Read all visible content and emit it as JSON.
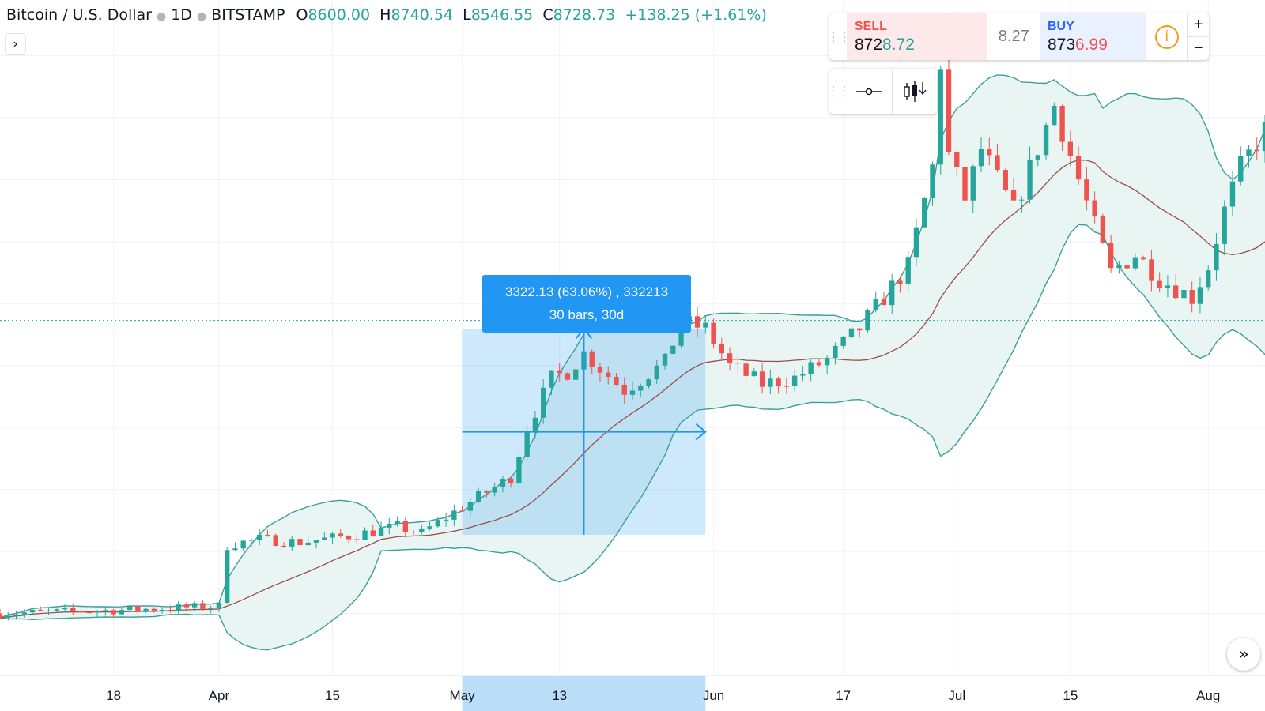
{
  "legend": {
    "symbol": "Bitcoin / U.S. Dollar",
    "interval": "1D",
    "exchange": "BITSTAMP",
    "open_label": "O",
    "open": "8600.00",
    "high_label": "H",
    "high": "8740.54",
    "low_label": "L",
    "low": "8546.55",
    "close_label": "C",
    "close": "8728.73",
    "change": "+138.25 (+1.61%)"
  },
  "trade": {
    "sell_label": "SELL",
    "sell_price_head": "872",
    "sell_price_tail": "8.72",
    "spread": "8.27",
    "buy_label": "BUY",
    "buy_price_head": "873",
    "buy_price_tail": "6.99",
    "plus": "+",
    "minus": "−",
    "info_icon": "i"
  },
  "measure": {
    "line1": "3322.13 (63.06%) , 332213",
    "line2": "30 bars, 30d"
  },
  "colors": {
    "up": "#26a69a",
    "down": "#ef5350",
    "band": "#3a9f9a",
    "band_fill": "#e9f5f3",
    "basis": "#9c4e4a",
    "measure": "#2196f3"
  },
  "chart_data": {
    "type": "candlestick",
    "x_tick_labels": [
      {
        "label": "18",
        "day": -13
      },
      {
        "label": "Apr",
        "day": 0
      },
      {
        "label": "15",
        "day": 14
      },
      {
        "label": "May",
        "day": 30
      },
      {
        "label": "13",
        "day": 42
      },
      {
        "label": "Jun",
        "day": 61
      },
      {
        "label": "17",
        "day": 77
      },
      {
        "label": "Jul",
        "day": 91
      },
      {
        "label": "15",
        "day": 105
      },
      {
        "label": "Aug",
        "day": 122
      }
    ],
    "x_range_days": [
      -27,
      129
    ],
    "y_range": [
      3000,
      13900
    ],
    "last_price": 8728.73,
    "indicator": "Bollinger Bands (20, 2)",
    "anchors": [
      [
        -27,
        4000
      ],
      [
        -13,
        4050
      ],
      [
        0,
        4120
      ],
      [
        1,
        5100
      ],
      [
        5,
        5200
      ],
      [
        10,
        5150
      ],
      [
        16,
        5250
      ],
      [
        22,
        5400
      ],
      [
        25,
        5300
      ],
      [
        31,
        5800
      ],
      [
        36,
        6200
      ],
      [
        38,
        7000
      ],
      [
        41,
        7800
      ],
      [
        43,
        7900
      ],
      [
        45,
        8200
      ],
      [
        50,
        7600
      ],
      [
        55,
        8050
      ],
      [
        57,
        8700
      ],
      [
        60,
        8600
      ],
      [
        63,
        8000
      ],
      [
        67,
        7700
      ],
      [
        71,
        7800
      ],
      [
        75,
        8100
      ],
      [
        79,
        8600
      ],
      [
        85,
        9600
      ],
      [
        88,
        11200
      ],
      [
        89,
        12900
      ],
      [
        90,
        11400
      ],
      [
        92,
        10700
      ],
      [
        94,
        11500
      ],
      [
        98,
        10500
      ],
      [
        103,
        12200
      ],
      [
        106,
        11000
      ],
      [
        110,
        9500
      ],
      [
        113,
        9800
      ],
      [
        116,
        9400
      ],
      [
        120,
        9100
      ],
      [
        122,
        9600
      ],
      [
        124,
        10500
      ],
      [
        126,
        11200
      ],
      [
        129,
        11800
      ]
    ],
    "measure_range": {
      "from_day": 30,
      "to_day": 60,
      "from_price": 5270,
      "to_price": 8592
    }
  }
}
